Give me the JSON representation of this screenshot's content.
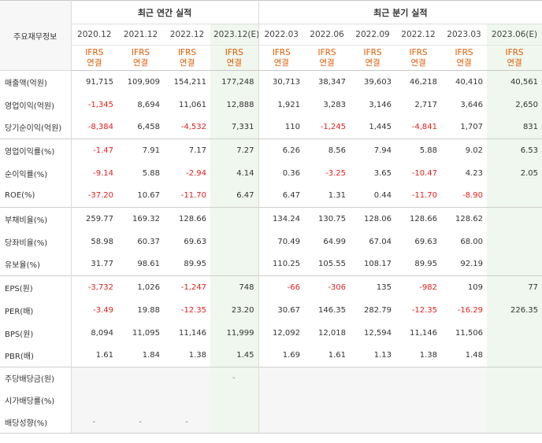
{
  "header": {
    "row_header": "주요재무정보",
    "annual_group": "최근 연간 실적",
    "quarter_group": "최근 분기 실적",
    "periods": [
      "2020.12",
      "2021.12",
      "2022.12",
      "2023.12(E)",
      "2022.03",
      "2022.06",
      "2022.09",
      "2022.12",
      "2023.03",
      "2023.06(E)"
    ],
    "std_top": "IFRS",
    "std_bottom": "연결"
  },
  "rows": [
    {
      "label": "매출액(억원)",
      "values": [
        "91,715",
        "109,909",
        "154,211",
        "177,248",
        "30,713",
        "38,347",
        "39,603",
        "46,218",
        "40,410",
        "40,561"
      ]
    },
    {
      "label": "영업이익(억원)",
      "values": [
        "-1,345",
        "8,694",
        "11,061",
        "12,888",
        "1,921",
        "3,283",
        "3,146",
        "2,717",
        "3,646",
        "2,650"
      ]
    },
    {
      "label": "당기순이익(억원)",
      "values": [
        "-8,384",
        "6,458",
        "-4,532",
        "7,331",
        "110",
        "-1,245",
        "1,445",
        "-4,841",
        "1,707",
        "831"
      ]
    },
    {
      "label": "영업이익률(%)",
      "values": [
        "-1.47",
        "7.91",
        "7.17",
        "7.27",
        "6.26",
        "8.56",
        "7.94",
        "5.88",
        "9.02",
        "6.53"
      ]
    },
    {
      "label": "순이익률(%)",
      "values": [
        "-9.14",
        "5.88",
        "-2.94",
        "4.14",
        "0.36",
        "-3.25",
        "3.65",
        "-10.47",
        "4.23",
        "2.05"
      ]
    },
    {
      "label": "ROE(%)",
      "values": [
        "-37.20",
        "10.67",
        "-11.70",
        "6.47",
        "6.47",
        "1.31",
        "0.44",
        "-11.70",
        "-8.90",
        ""
      ]
    },
    {
      "label": "부채비율(%)",
      "values": [
        "259.77",
        "169.32",
        "128.66",
        "",
        "134.24",
        "130.75",
        "128.06",
        "128.66",
        "128.62",
        ""
      ]
    },
    {
      "label": "당좌비율(%)",
      "values": [
        "58.98",
        "60.37",
        "69.63",
        "",
        "70.49",
        "64.99",
        "67.04",
        "69.63",
        "68.00",
        ""
      ]
    },
    {
      "label": "유보율(%)",
      "values": [
        "31.77",
        "98.61",
        "89.95",
        "",
        "110.25",
        "105.55",
        "108.17",
        "89.95",
        "92.19",
        ""
      ]
    },
    {
      "label": "EPS(원)",
      "values": [
        "-3,732",
        "1,026",
        "-1,247",
        "748",
        "-66",
        "-306",
        "135",
        "-982",
        "109",
        "77"
      ]
    },
    {
      "label": "PER(배)",
      "values": [
        "-3.49",
        "19.88",
        "-12.35",
        "23.20",
        "30.67",
        "146.35",
        "282.79",
        "-12.35",
        "-16.29",
        "226.35"
      ]
    },
    {
      "label": "BPS(원)",
      "values": [
        "8,094",
        "11,095",
        "11,146",
        "11,999",
        "12,092",
        "12,018",
        "12,594",
        "11,146",
        "11,506",
        ""
      ]
    },
    {
      "label": "PBR(배)",
      "values": [
        "1.61",
        "1.84",
        "1.38",
        "1.45",
        "1.69",
        "1.61",
        "1.13",
        "1.38",
        "1.48",
        ""
      ]
    },
    {
      "label": "주당배당금(원)",
      "values": [
        "",
        "",
        "",
        "-",
        "",
        "",
        "",
        "",
        "",
        ""
      ]
    },
    {
      "label": "시가배당률(%)",
      "values": [
        "",
        "",
        "",
        "",
        "",
        "",
        "",
        "",
        "",
        ""
      ]
    },
    {
      "label": "배당성향(%)",
      "values": [
        "-",
        "-",
        "-",
        "",
        "",
        "",
        "",
        "",
        "",
        ""
      ]
    }
  ]
}
